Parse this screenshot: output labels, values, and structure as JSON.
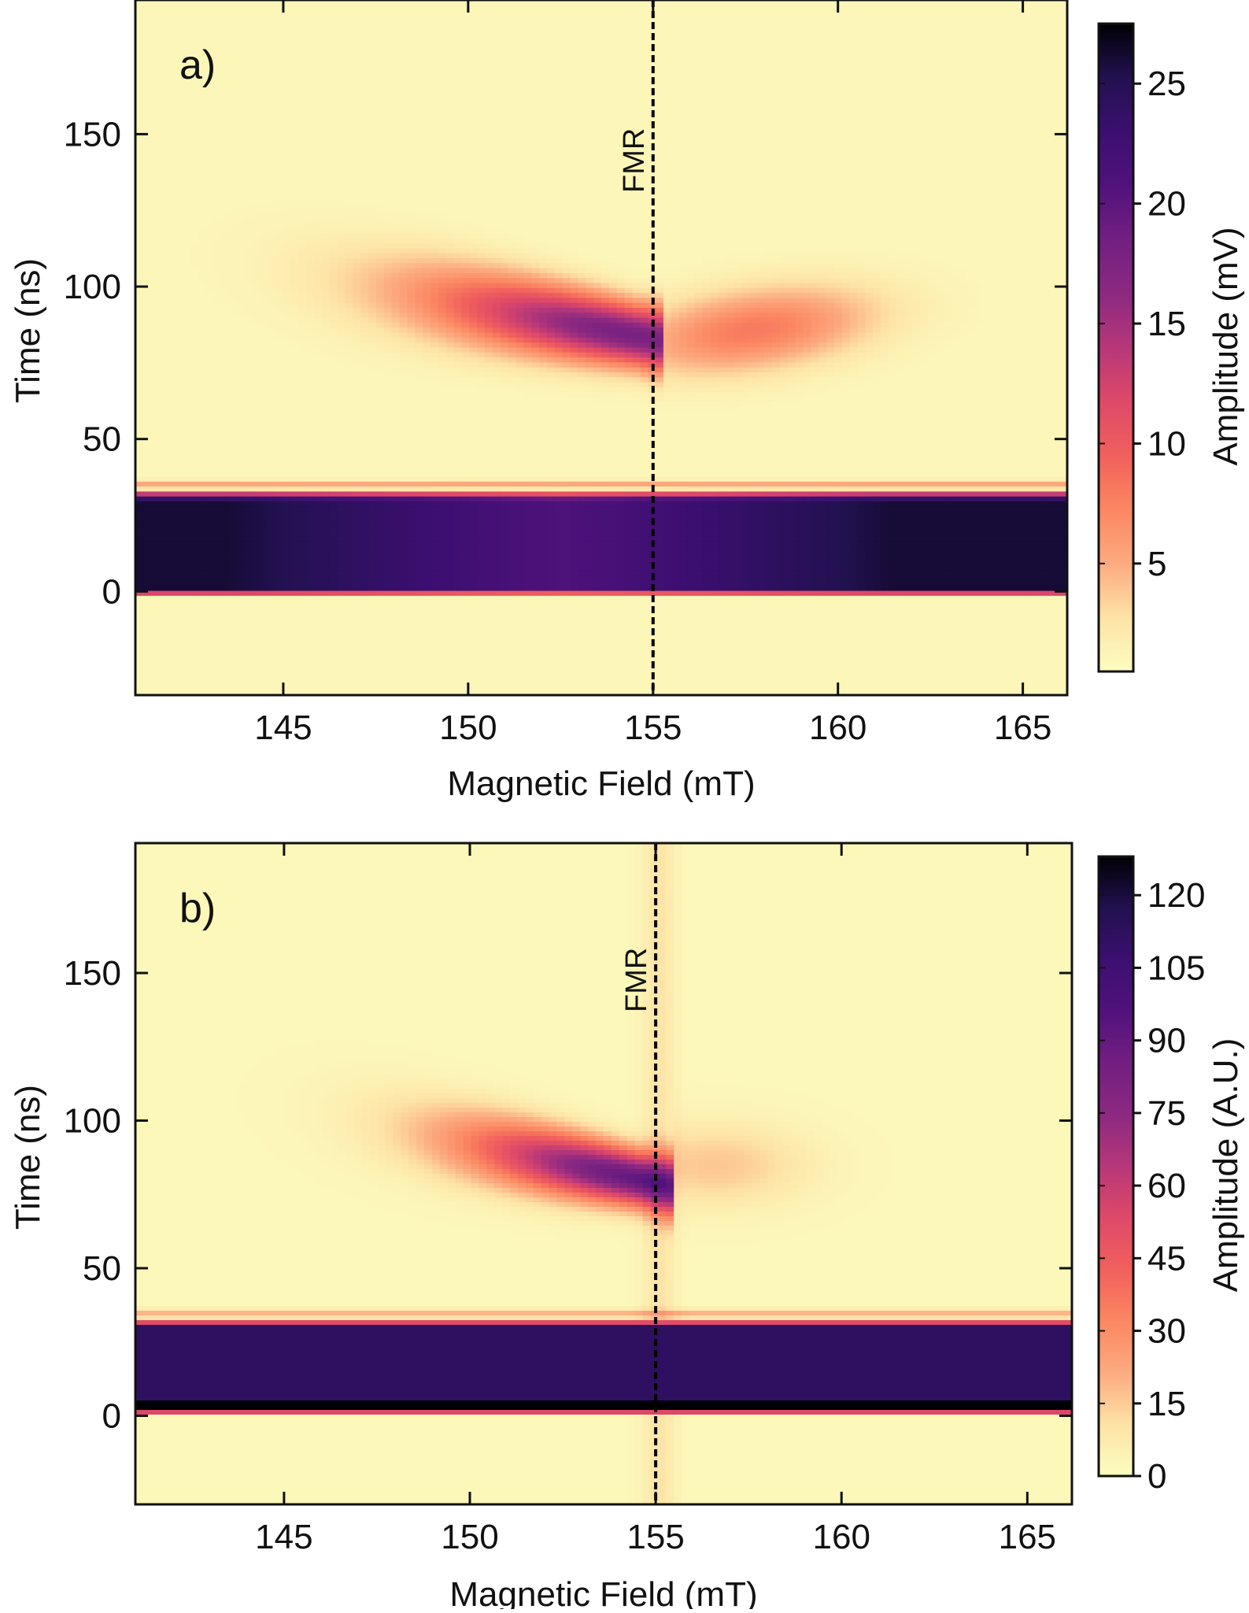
{
  "chart_data": [
    {
      "type": "heatmap",
      "panel_label": "a)",
      "xlabel": "Magnetic Field (mT)",
      "ylabel": "Time (ns)",
      "xlim": [
        141,
        166.2
      ],
      "ylim": [
        -34,
        194
      ],
      "xticks": [
        145,
        150,
        155,
        160,
        165
      ],
      "yticks": [
        0,
        50,
        100,
        150
      ],
      "colorbar": {
        "label": "Amplitude (mV)",
        "range": [
          0.5,
          27.5
        ],
        "ticks": [
          5,
          10,
          15,
          20,
          25
        ]
      },
      "annotations": [
        {
          "text": "FMR",
          "x": 155.0
        }
      ],
      "features": {
        "pulse_band_time": [
          1,
          31
        ],
        "pulse_band_level_edges": 26,
        "pulse_band_level_center": 21,
        "echo_peak_field": 154.5,
        "echo_peak_time": 84,
        "echo_peak_level": 17
      }
    },
    {
      "type": "heatmap",
      "panel_label": "b)",
      "xlabel": "Magnetic Field (mT)",
      "ylabel": "Time (ns)",
      "xlim": [
        141,
        166.2
      ],
      "ylim": [
        -30,
        194
      ],
      "xticks": [
        145,
        150,
        155,
        160,
        165
      ],
      "yticks": [
        0,
        50,
        100,
        150
      ],
      "colorbar": {
        "label": "Amplitude (A.U.)",
        "range": [
          0,
          128
        ],
        "ticks": [
          0,
          15,
          30,
          45,
          60,
          75,
          90,
          105,
          120
        ]
      },
      "annotations": [
        {
          "text": "FMR",
          "x": 155.0
        }
      ],
      "features": {
        "pulse_band_time": [
          2,
          31
        ],
        "pulse_band_level": 112,
        "pulse_line_time": 4,
        "pulse_line_level": 128,
        "echo_peak_field": 154.6,
        "echo_peak_time": 80,
        "echo_peak_level": 88
      }
    }
  ],
  "colors": {
    "cmap_magma_r": [
      "#fcfdbf",
      "#fde3a6",
      "#fcaa80",
      "#fb8761",
      "#f1605d",
      "#de4968",
      "#b73779",
      "#8c2981",
      "#721f81",
      "#51127c",
      "#3b0f70",
      "#221150",
      "#000004"
    ],
    "axis": "#111111",
    "fmr_line": "#000000"
  }
}
